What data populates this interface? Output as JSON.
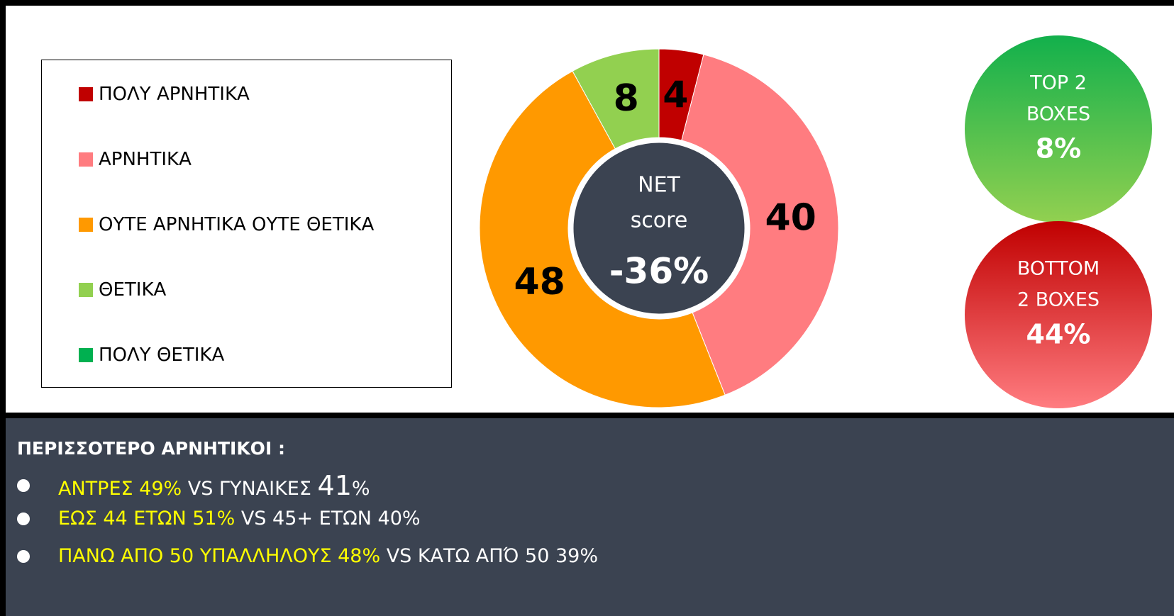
{
  "chart_data": {
    "type": "donut",
    "categories": [
      "ΠΟΛΥ ΑΡΝΗΤΙΚΑ",
      "ΑΡΝΗΤΙΚΑ",
      "ΟΥΤΕ ΑΡΝΗΤΙΚΑ ΟΥΤΕ ΘΕΤΙΚΑ",
      "ΘΕΤΙΚΑ",
      "ΠΟΛΥ ΘΕΤΙΚΑ"
    ],
    "values": [
      4,
      40,
      48,
      8,
      0
    ],
    "colors": [
      "#c00000",
      "#ff7c80",
      "#ff9900",
      "#92d050",
      "#00b050"
    ],
    "center_lines": [
      "NET",
      "score"
    ],
    "center_value": "-36%"
  },
  "kpis": [
    {
      "lines": [
        "TOP 2",
        "BOXES"
      ],
      "value": "8%",
      "colors": [
        "#12b04c",
        "#92d050"
      ]
    },
    {
      "lines": [
        "BOTTOM",
        "2 BOXES"
      ],
      "value": "44%",
      "colors": [
        "#c00000",
        "#ff7c80"
      ]
    }
  ],
  "notes": {
    "heading": "ΠΕΡΙΣΣΟΤΕΡΟ ΑΡΝΗΤΙΚΟΙ :",
    "bullets": [
      [
        {
          "text": "ΑΝΤΡΕΣ 49%",
          "kind": "highlight"
        },
        {
          "text": " VS ΓΥΝΑΙΚΕΣ ",
          "kind": "plain"
        },
        {
          "text": "41",
          "kind": "big"
        },
        {
          "text": "%",
          "kind": "plain"
        }
      ],
      [
        {
          "text": "ΕΩΣ 44 ΕΤΩΝ 51%",
          "kind": "highlight"
        },
        {
          "text": " VS 45+ ΕΤΩΝ 40%",
          "kind": "plain"
        }
      ],
      [
        {
          "text": "ΠΑΝΩ ΑΠΟ 50 ΥΠΑΛΛΗΛΟΥΣ 48%",
          "kind": "highlight"
        },
        {
          "text": " VS ΚΑΤΩ ΑΠΌ 50 39%",
          "kind": "plain"
        }
      ]
    ]
  }
}
